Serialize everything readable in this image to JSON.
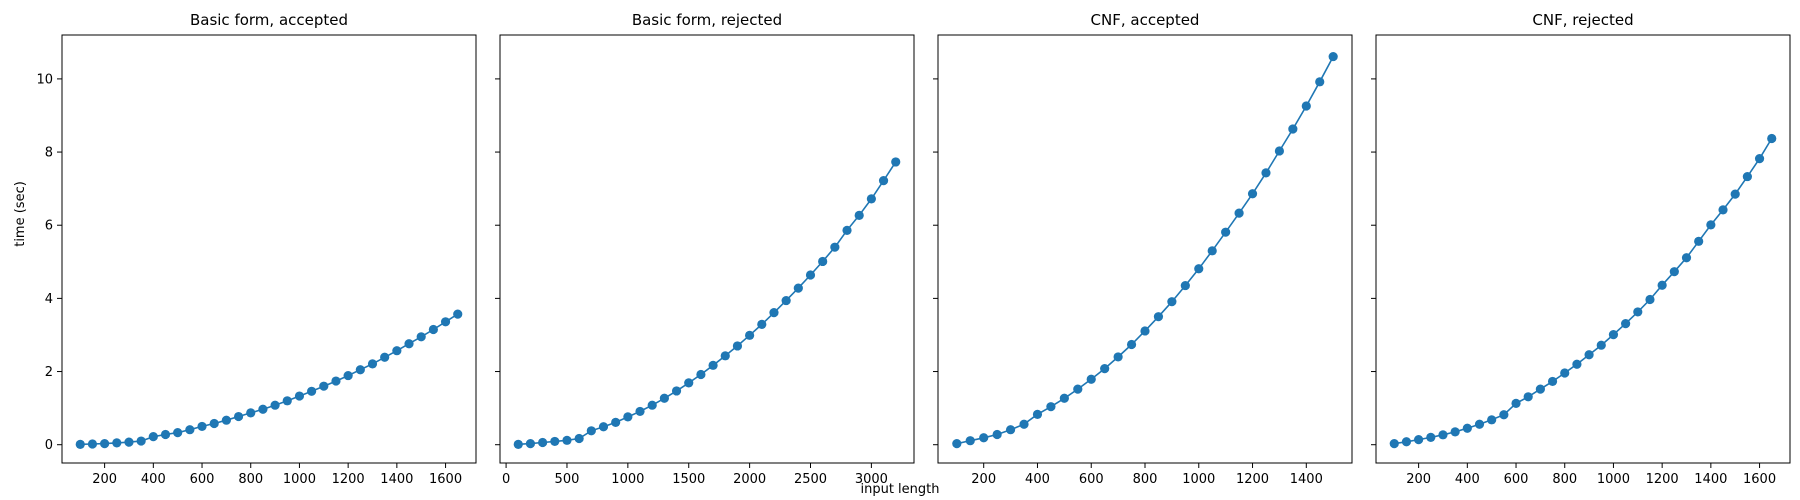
{
  "figure": {
    "ylabel": "time (sec)",
    "xlabel": "input length",
    "series_color": "#1f77b4",
    "yticks": [
      0,
      2,
      4,
      6,
      8,
      10
    ]
  },
  "chart_data": [
    {
      "type": "line",
      "title": "Basic form, accepted",
      "xlim": [
        25,
        1725
      ],
      "ylim": [
        -0.5,
        11.2
      ],
      "xticks": [
        200,
        400,
        600,
        800,
        1000,
        1200,
        1400,
        1600
      ],
      "x": [
        100,
        150,
        200,
        250,
        300,
        350,
        400,
        450,
        500,
        550,
        600,
        650,
        700,
        750,
        800,
        850,
        900,
        950,
        1000,
        1050,
        1100,
        1150,
        1200,
        1250,
        1300,
        1350,
        1400,
        1450,
        1500,
        1550,
        1600,
        1650
      ],
      "y": [
        0.01,
        0.02,
        0.03,
        0.05,
        0.07,
        0.1,
        0.22,
        0.28,
        0.33,
        0.41,
        0.5,
        0.58,
        0.67,
        0.77,
        0.87,
        0.97,
        1.08,
        1.2,
        1.33,
        1.46,
        1.6,
        1.74,
        1.89,
        2.05,
        2.21,
        2.39,
        2.57,
        2.76,
        2.95,
        3.15,
        3.36,
        3.57
      ]
    },
    {
      "type": "line",
      "title": "Basic form, rejected",
      "xlim": [
        -50,
        3350
      ],
      "ylim": [
        -0.5,
        11.2
      ],
      "xticks": [
        0,
        500,
        1000,
        1500,
        2000,
        2500,
        3000
      ],
      "x": [
        100,
        200,
        300,
        400,
        500,
        600,
        700,
        800,
        900,
        1000,
        1100,
        1200,
        1300,
        1400,
        1500,
        1600,
        1700,
        1800,
        1900,
        2000,
        2100,
        2200,
        2300,
        2400,
        2500,
        2600,
        2700,
        2800,
        2900,
        3000,
        3100,
        3200
      ],
      "y": [
        0.01,
        0.03,
        0.06,
        0.09,
        0.12,
        0.17,
        0.38,
        0.49,
        0.61,
        0.76,
        0.91,
        1.08,
        1.27,
        1.47,
        1.69,
        1.92,
        2.17,
        2.43,
        2.7,
        2.99,
        3.29,
        3.61,
        3.94,
        4.28,
        4.64,
        5.01,
        5.4,
        5.86,
        6.27,
        6.72,
        7.22,
        7.73
      ]
    },
    {
      "type": "line",
      "title": "CNF, accepted",
      "xlim": [
        30,
        1570
      ],
      "ylim": [
        -0.5,
        11.2
      ],
      "xticks": [
        200,
        400,
        600,
        800,
        1000,
        1200,
        1400
      ],
      "x": [
        100,
        150,
        200,
        250,
        300,
        350,
        400,
        450,
        500,
        550,
        600,
        650,
        700,
        750,
        800,
        850,
        900,
        950,
        1000,
        1050,
        1100,
        1150,
        1200,
        1250,
        1300,
        1350,
        1400,
        1450,
        1500
      ],
      "y": [
        0.03,
        0.11,
        0.19,
        0.28,
        0.41,
        0.56,
        0.83,
        1.04,
        1.27,
        1.52,
        1.79,
        2.08,
        2.4,
        2.74,
        3.11,
        3.5,
        3.91,
        4.35,
        4.81,
        5.3,
        5.81,
        6.33,
        6.86,
        7.43,
        8.03,
        8.63,
        9.26,
        9.92,
        10.61
      ]
    },
    {
      "type": "line",
      "title": "CNF, rejected",
      "xlim": [
        25,
        1725
      ],
      "ylim": [
        -0.5,
        11.2
      ],
      "xticks": [
        200,
        400,
        600,
        800,
        1000,
        1200,
        1400,
        1600
      ],
      "x": [
        100,
        150,
        200,
        250,
        300,
        350,
        400,
        450,
        500,
        550,
        600,
        650,
        700,
        750,
        800,
        850,
        900,
        950,
        1000,
        1050,
        1100,
        1150,
        1200,
        1250,
        1300,
        1350,
        1400,
        1450,
        1500,
        1550,
        1600,
        1650
      ],
      "y": [
        0.03,
        0.08,
        0.14,
        0.2,
        0.27,
        0.35,
        0.45,
        0.56,
        0.68,
        0.82,
        1.13,
        1.31,
        1.52,
        1.73,
        1.96,
        2.2,
        2.46,
        2.72,
        3.01,
        3.31,
        3.63,
        3.97,
        4.36,
        4.73,
        5.11,
        5.56,
        6.01,
        6.42,
        6.85,
        7.33,
        7.82,
        8.37
      ]
    }
  ]
}
